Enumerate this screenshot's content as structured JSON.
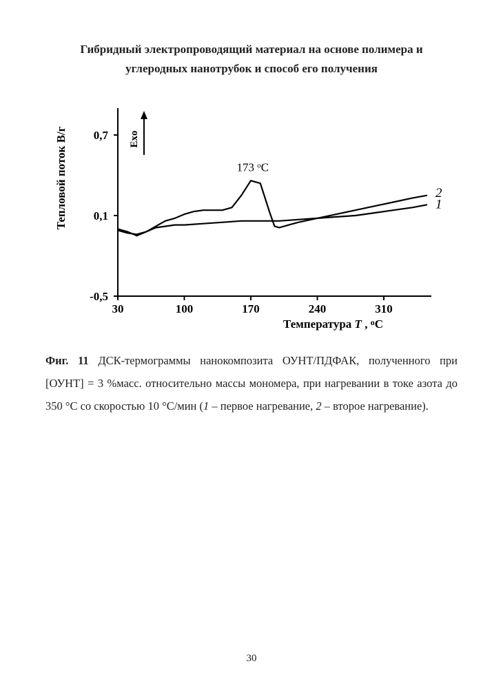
{
  "title_line1": "Гибридный электропроводящий материал на основе полимера и",
  "title_line2": "углеродных нанотрубок  и способ его получения",
  "page_number": "30",
  "caption": {
    "fig_label": "Фиг. 11",
    "body_part1": "ДСК-термограммы нанокомпозита ОУНТ/ПДФАК, полученного при [ОУНТ] = 3 %масс. относительно массы мономера, при нагревании в токе азота до 350 °C со скоростью 10 °C/мин (",
    "i1": "1",
    "body_part2": " – первое нагревание, ",
    "i2": "2",
    "body_part3": " – второе нагревание)."
  },
  "chart": {
    "type": "line",
    "background_color": "#ffffff",
    "axis_color": "#000000",
    "line_color": "#000000",
    "text_color": "#000000",
    "stroke_width": 2.2,
    "y_label": "Тепловой поток В/г",
    "x_label": "Температура T , °C",
    "exo_label": "Exo",
    "peak_label": "173 °C",
    "series1_label": "1",
    "series2_label": "2",
    "xlim": [
      30,
      360
    ],
    "ylim": [
      -0.5,
      0.9
    ],
    "x_ticks": [
      30,
      100,
      170,
      240,
      310
    ],
    "x_tick_labels": [
      "30",
      "100",
      "170",
      "240",
      "310"
    ],
    "y_ticks": [
      -0.5,
      0.1,
      0.7
    ],
    "y_tick_labels": [
      "-0,5",
      "0,1",
      "0,7"
    ],
    "axis_font_size": 17,
    "tick_font_size": 17,
    "label_font_weight": "bold",
    "series": [
      {
        "name": "1",
        "x": [
          30,
          40,
          50,
          60,
          70,
          80,
          90,
          100,
          120,
          140,
          160,
          170,
          180,
          200,
          220,
          240,
          260,
          280,
          300,
          320,
          340,
          355
        ],
        "y": [
          0.0,
          -0.02,
          -0.05,
          -0.02,
          0.01,
          0.02,
          0.03,
          0.03,
          0.04,
          0.05,
          0.06,
          0.06,
          0.06,
          0.06,
          0.07,
          0.08,
          0.09,
          0.1,
          0.12,
          0.14,
          0.16,
          0.18
        ]
      },
      {
        "name": "2",
        "x": [
          30,
          40,
          50,
          60,
          70,
          80,
          90,
          100,
          110,
          120,
          130,
          140,
          150,
          160,
          170,
          180,
          190,
          195,
          200,
          210,
          220,
          240,
          260,
          280,
          300,
          320,
          340,
          355
        ],
        "y": [
          -0.01,
          -0.03,
          -0.04,
          -0.02,
          0.02,
          0.06,
          0.08,
          0.11,
          0.13,
          0.14,
          0.14,
          0.14,
          0.16,
          0.25,
          0.36,
          0.34,
          0.12,
          0.02,
          0.01,
          0.03,
          0.05,
          0.08,
          0.11,
          0.14,
          0.17,
          0.2,
          0.23,
          0.25
        ]
      }
    ]
  }
}
